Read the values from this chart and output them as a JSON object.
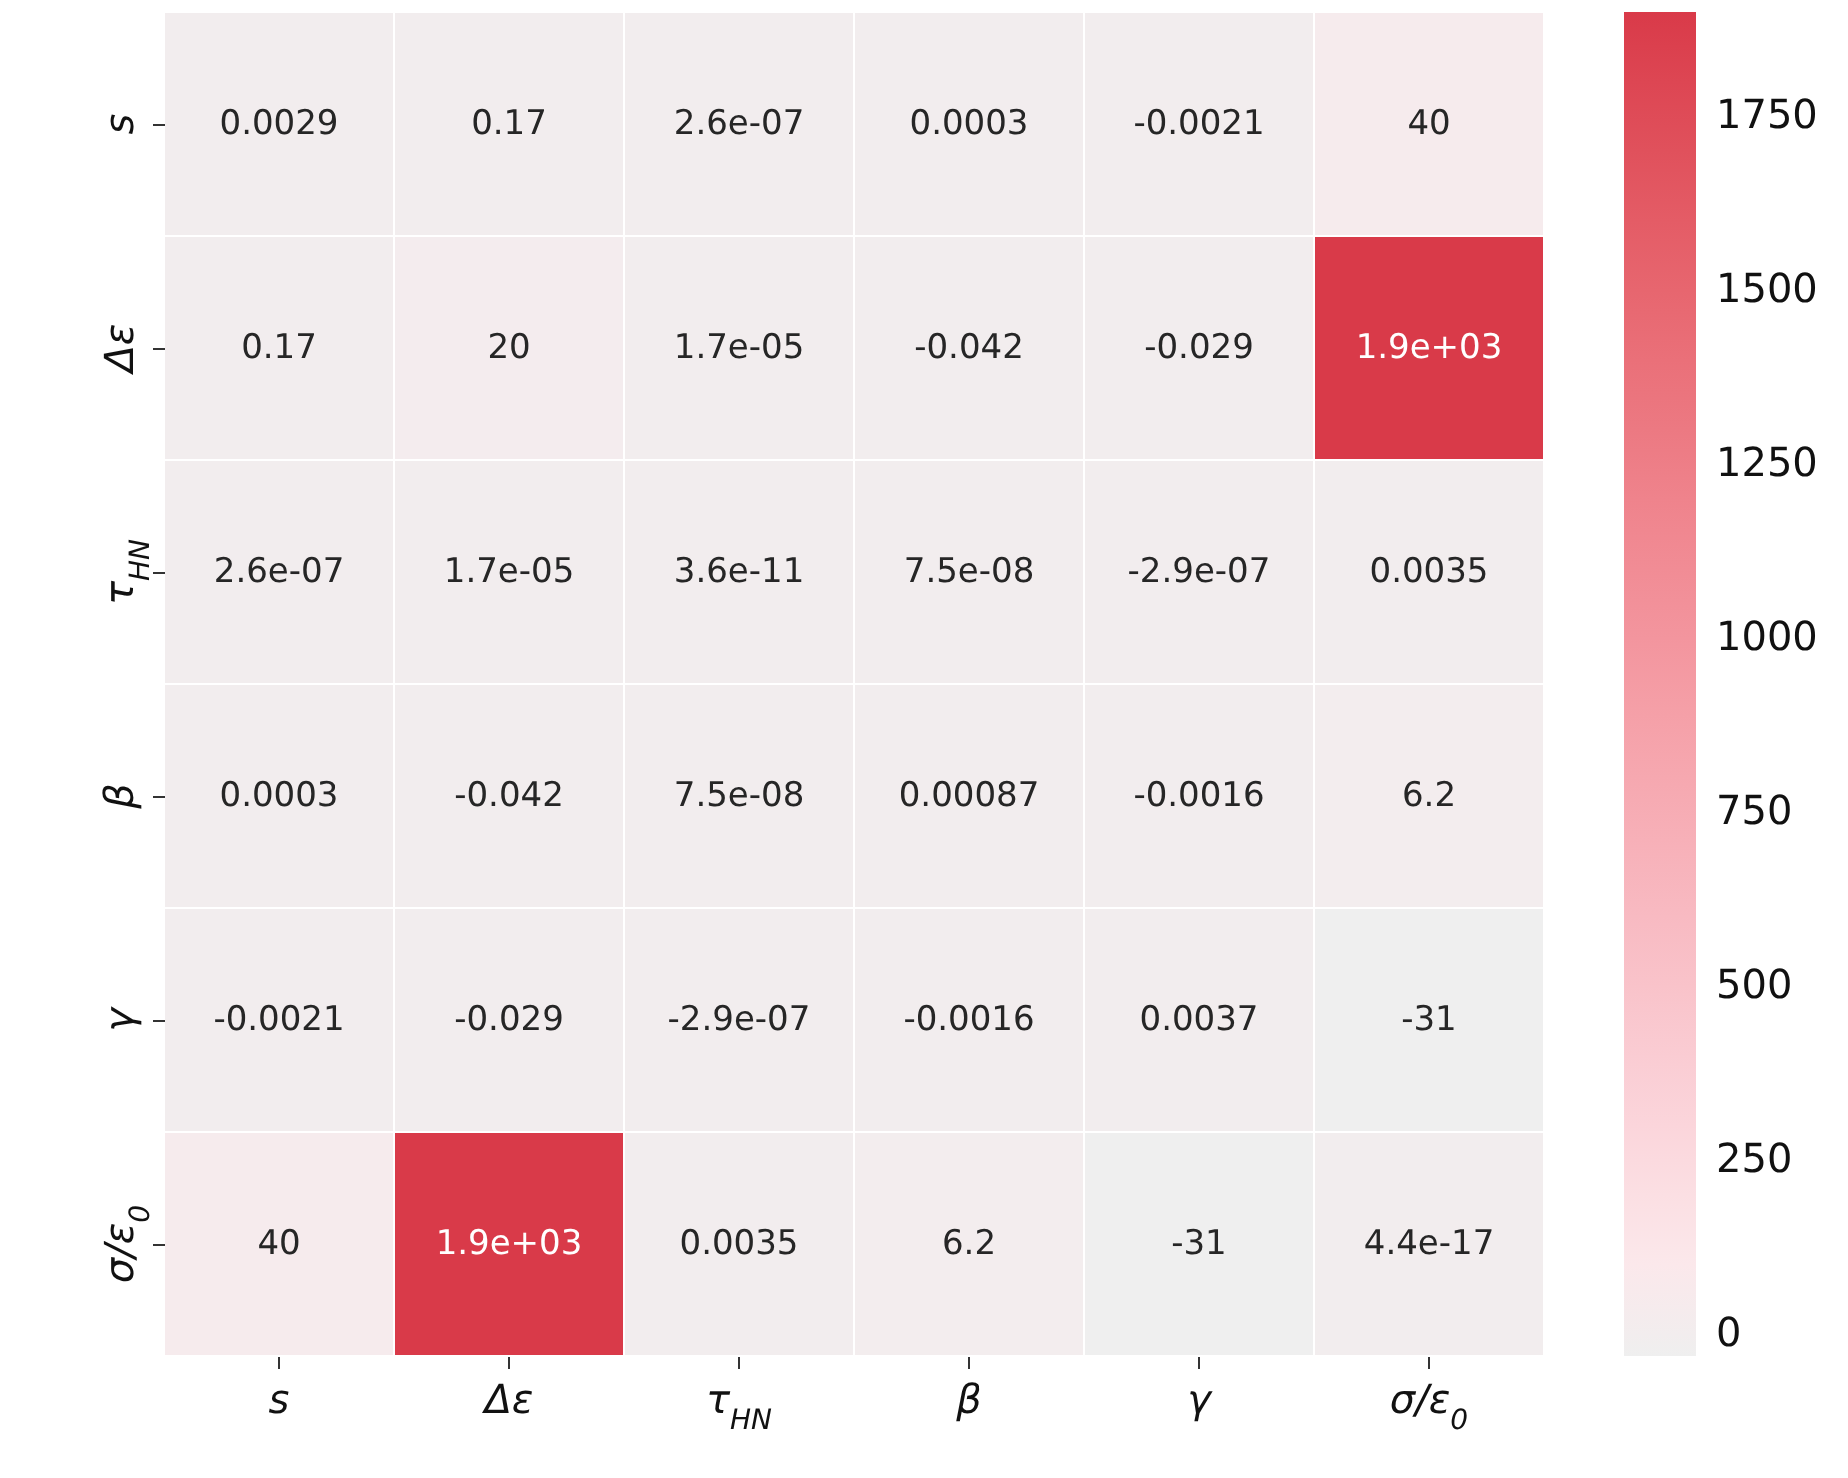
{
  "chart_data": {
    "type": "heatmap",
    "categories": [
      "s",
      "Δε",
      "τ$_{HN}$",
      "β",
      "γ",
      "σ/ε$_{0}$"
    ],
    "y_categories": [
      "s",
      "Δε",
      "τ$_{HN}$",
      "β",
      "γ",
      "σ/ε$_{0}$"
    ],
    "cells": [
      [
        0.0029,
        0.17,
        2.6e-07,
        0.0003,
        -0.0021,
        40
      ],
      [
        0.17,
        20,
        1.7e-05,
        -0.042,
        -0.029,
        1900
      ],
      [
        2.6e-07,
        1.7e-05,
        3.6e-11,
        7.5e-08,
        -2.9e-07,
        0.0035
      ],
      [
        0.0003,
        -0.042,
        7.5e-08,
        0.00087,
        -0.0016,
        6.2
      ],
      [
        -0.0021,
        -0.029,
        -2.9e-07,
        -0.0016,
        0.0037,
        -31
      ],
      [
        40,
        1900,
        0.0035,
        6.2,
        -31,
        4.4e-17
      ]
    ],
    "cell_labels": [
      [
        "0.0029",
        "0.17",
        "2.6e-07",
        "0.0003",
        "-0.0021",
        "40"
      ],
      [
        "0.17",
        "20",
        "1.7e-05",
        "-0.042",
        "-0.029",
        "1.9e+03"
      ],
      [
        "2.6e-07",
        "1.7e-05",
        "3.6e-11",
        "7.5e-08",
        "-2.9e-07",
        "0.0035"
      ],
      [
        "0.0003",
        "-0.042",
        "7.5e-08",
        "0.00087",
        "-0.0016",
        "6.2"
      ],
      [
        "-0.0021",
        "-0.029",
        "-2.9e-07",
        "-0.0016",
        "0.0037",
        "-31"
      ],
      [
        "40",
        "1.9e+03",
        "0.0035",
        "6.2",
        "-31",
        "4.4e-17"
      ]
    ],
    "clim": [
      -31,
      1900
    ],
    "cticks": [
      0,
      250,
      500,
      750,
      1000,
      1250,
      1500,
      1750
    ]
  }
}
